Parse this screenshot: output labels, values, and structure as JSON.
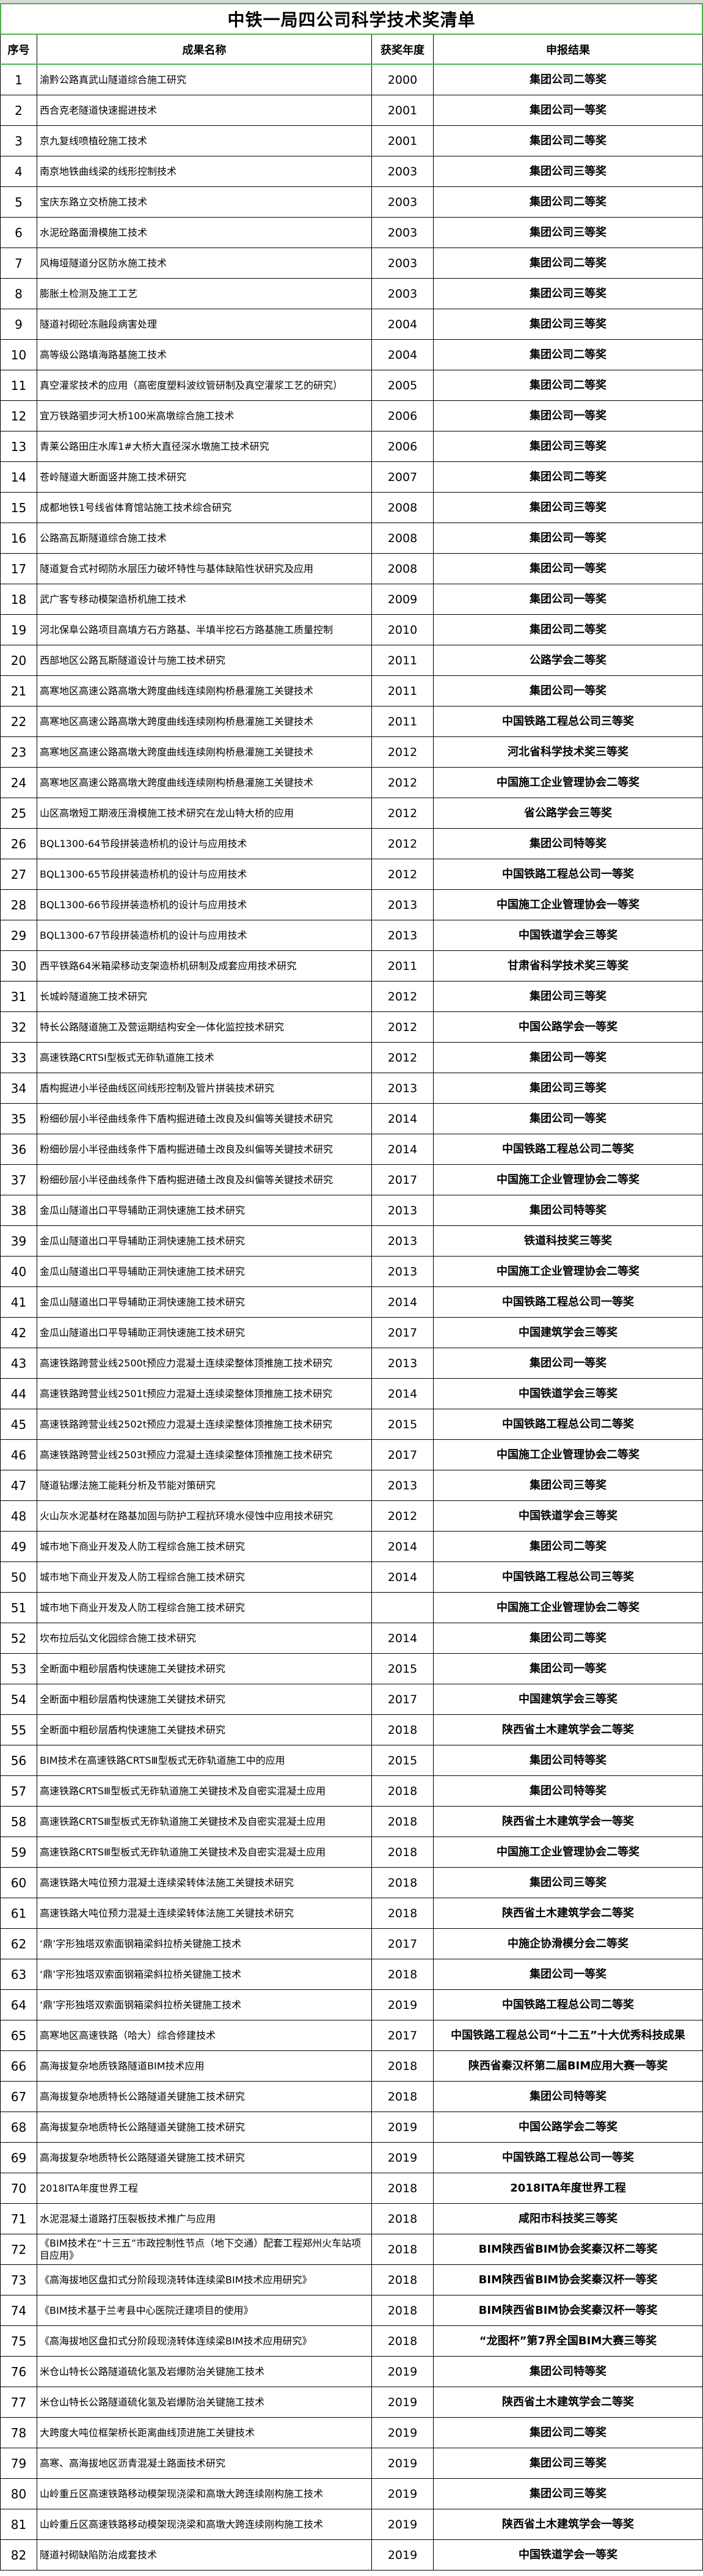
{
  "title": "中铁一局四公司科学技术奖清单",
  "columns": [
    "序号",
    "成果名称",
    "获奖年度",
    "申报结果"
  ],
  "accent_color": "#4caf50",
  "rows": [
    [
      "1",
      "渝黔公路真武山隧道综合施工研究",
      "2000",
      "集团公司二等奖"
    ],
    [
      "2",
      "西合克老隧道快速掘进技术",
      "2001",
      "集团公司一等奖"
    ],
    [
      "3",
      "京九复线喷植砼施工技术",
      "2001",
      "集团公司二等奖"
    ],
    [
      "4",
      "南京地铁曲线梁的线形控制技术",
      "2003",
      "集团公司三等奖"
    ],
    [
      "5",
      "宝庆东路立交桥施工技术",
      "2003",
      "集团公司二等奖"
    ],
    [
      "6",
      "水泥砼路面滑模施工技术",
      "2003",
      "集团公司三等奖"
    ],
    [
      "7",
      "风梅垭隧道分区防水施工技术",
      "2003",
      "集团公司二等奖"
    ],
    [
      "8",
      "膨胀土检测及施工工艺",
      "2003",
      "集团公司三等奖"
    ],
    [
      "9",
      "隧道衬砌砼冻融段病害处理",
      "2004",
      "集团公司三等奖"
    ],
    [
      "10",
      "高等级公路填海路基施工技术",
      "2004",
      "集团公司二等奖"
    ],
    [
      "11",
      "真空灌浆技术的应用（高密度塑料波纹管研制及真空灌浆工艺的研究）",
      "2005",
      "集团公司二等奖"
    ],
    [
      "12",
      "宜万铁路驷步河大桥100米高墩综合施工技术",
      "2006",
      "集团公司一等奖"
    ],
    [
      "13",
      "青莱公路田庄水库1#大桥大直径深水墩施工技术研究",
      "2006",
      "集团公司三等奖"
    ],
    [
      "14",
      "苍岭隧道大断面竖井施工技术研究",
      "2007",
      "集团公司二等奖"
    ],
    [
      "15",
      "成都地铁1号线省体育馆站施工技术综合研究",
      "2008",
      "集团公司三等奖"
    ],
    [
      "16",
      "公路高瓦斯隧道综合施工技术",
      "2008",
      "集团公司一等奖"
    ],
    [
      "17",
      "隧道复合式衬砌防水层压力破坏特性与基体缺陷性状研究及应用",
      "2008",
      "集团公司一等奖"
    ],
    [
      "18",
      "武广客专移动模架造桥机施工技术",
      "2009",
      "集团公司一等奖"
    ],
    [
      "19",
      "河北保阜公路项目高填方石方路基、半填半挖石方路基施工质量控制",
      "2010",
      "集团公司二等奖"
    ],
    [
      "20",
      "西部地区公路瓦斯隧道设计与施工技术研究",
      "2011",
      "公路学会二等奖"
    ],
    [
      "21",
      "高寒地区高速公路高墩大跨度曲线连续刚构桥悬灌施工关键技术",
      "2011",
      "集团公司一等奖"
    ],
    [
      "22",
      "高寒地区高速公路高墩大跨度曲线连续刚构桥悬灌施工关键技术",
      "2011",
      "中国铁路工程总公司三等奖"
    ],
    [
      "23",
      "高寒地区高速公路高墩大跨度曲线连续刚构桥悬灌施工关键技术",
      "2012",
      "河北省科学技术奖三等奖"
    ],
    [
      "24",
      "高寒地区高速公路高墩大跨度曲线连续刚构桥悬灌施工关键技术",
      "2012",
      "中国施工企业管理协会二等奖"
    ],
    [
      "25",
      "山区高墩短工期液压滑模施工技术研究在龙山特大桥的应用",
      "2012",
      "省公路学会三等奖"
    ],
    [
      "26",
      "BQL1300-64节段拼装造桥机的设计与应用技术",
      "2012",
      "集团公司特等奖"
    ],
    [
      "27",
      "BQL1300-65节段拼装造桥机的设计与应用技术",
      "2012",
      "中国铁路工程总公司一等奖"
    ],
    [
      "28",
      "BQL1300-66节段拼装造桥机的设计与应用技术",
      "2013",
      "中国施工企业管理协会一等奖"
    ],
    [
      "29",
      "BQL1300-67节段拼装造桥机的设计与应用技术",
      "2013",
      "中国铁道学会三等奖"
    ],
    [
      "30",
      "西平铁路64米箱梁移动支架造桥机研制及成套应用技术研究",
      "2011",
      "甘肃省科学技术奖三等奖"
    ],
    [
      "31",
      "长城岭隧道施工技术研究",
      "2012",
      "集团公司三等奖"
    ],
    [
      "32",
      "特长公路隧道施工及营运期结构安全一体化监控技术研究",
      "2012",
      "中国公路学会一等奖"
    ],
    [
      "33",
      "高速铁路CRTSⅠ型板式无砟轨道施工技术",
      "2012",
      "集团公司一等奖"
    ],
    [
      "34",
      "盾构掘进小半径曲线区间线形控制及管片拼装技术研究",
      "2013",
      "集团公司三等奖"
    ],
    [
      "35",
      "粉细砂层小半径曲线条件下盾构掘进碴土改良及纠偏等关键技术研究",
      "2014",
      "集团公司一等奖"
    ],
    [
      "36",
      "粉细砂层小半径曲线条件下盾构掘进碴土改良及纠偏等关键技术研究",
      "2014",
      "中国铁路工程总公司二等奖"
    ],
    [
      "37",
      "粉细砂层小半径曲线条件下盾构掘进碴土改良及纠偏等关键技术研究",
      "2017",
      "中国施工企业管理协会二等奖"
    ],
    [
      "38",
      "金瓜山隧道出口平导辅助正洞快速施工技术研究",
      "2013",
      "集团公司特等奖"
    ],
    [
      "39",
      "金瓜山隧道出口平导辅助正洞快速施工技术研究",
      "2013",
      "铁道科技奖三等奖"
    ],
    [
      "40",
      "金瓜山隧道出口平导辅助正洞快速施工技术研究",
      "2013",
      "中国施工企业管理协会二等奖"
    ],
    [
      "41",
      "金瓜山隧道出口平导辅助正洞快速施工技术研究",
      "2014",
      "中国铁路工程总公司一等奖"
    ],
    [
      "42",
      "金瓜山隧道出口平导辅助正洞快速施工技术研究",
      "2017",
      "中国建筑学会三等奖"
    ],
    [
      "43",
      "高速铁路跨营业线2500t预应力混凝土连续梁整体顶推施工技术研究",
      "2013",
      "集团公司一等奖"
    ],
    [
      "44",
      "高速铁路跨营业线2501t预应力混凝土连续梁整体顶推施工技术研究",
      "2014",
      "中国铁道学会三等奖"
    ],
    [
      "45",
      "高速铁路跨营业线2502t预应力混凝土连续梁整体顶推施工技术研究",
      "2015",
      "中国铁路工程总公司二等奖"
    ],
    [
      "46",
      "高速铁路跨营业线2503t预应力混凝土连续梁整体顶推施工技术研究",
      "2017",
      "中国施工企业管理协会二等奖"
    ],
    [
      "47",
      "隧道钻爆法施工能耗分析及节能对策研究",
      "2013",
      "集团公司三等奖"
    ],
    [
      "48",
      "火山灰水泥基材在路基加固与防护工程抗环境水侵蚀中应用技术研究",
      "2012",
      "中国铁道学会三等奖"
    ],
    [
      "49",
      "城市地下商业开发及人防工程综合施工技术研究",
      "2014",
      "集团公司二等奖"
    ],
    [
      "50",
      "城市地下商业开发及人防工程综合施工技术研究",
      "2014",
      "中国铁路工程总公司三等奖"
    ],
    [
      "51",
      "城市地下商业开发及人防工程综合施工技术研究",
      "",
      "中国施工企业管理协会二等奖"
    ],
    [
      "52",
      "坎布拉后弘文化园综合施工技术研究",
      "2014",
      "集团公司二等奖"
    ],
    [
      "53",
      "全断面中粗砂层盾构快速施工关键技术研究",
      "2015",
      "集团公司一等奖"
    ],
    [
      "54",
      "全断面中粗砂层盾构快速施工关键技术研究",
      "2017",
      "中国建筑学会三等奖"
    ],
    [
      "55",
      "全断面中粗砂层盾构快速施工关键技术研究",
      "2018",
      "陕西省土木建筑学会二等奖"
    ],
    [
      "56",
      "BIM技术在高速铁路CRTSⅢ型板式无砟轨道施工中的应用",
      "2015",
      "集团公司特等奖"
    ],
    [
      "57",
      "高速铁路CRTSⅢ型板式无砟轨道施工关键技术及自密实混凝土应用",
      "2018",
      "集团公司特等奖"
    ],
    [
      "58",
      "高速铁路CRTSⅢ型板式无砟轨道施工关键技术及自密实混凝土应用",
      "2018",
      "陕西省土木建筑学会一等奖"
    ],
    [
      "59",
      "高速铁路CRTSⅢ型板式无砟轨道施工关键技术及自密实混凝土应用",
      "2018",
      "中国施工企业管理协会二等奖"
    ],
    [
      "60",
      "高速铁路大吨位预力混凝土连续梁转体法施工关键技术研究",
      "2018",
      "集团公司三等奖"
    ],
    [
      "61",
      "高速铁路大吨位预力混凝土连续梁转体法施工关键技术研究",
      "2018",
      "陕西省土木建筑学会二等奖"
    ],
    [
      "62",
      "‘鼎’字形独塔双索面钢箱梁斜拉桥关键施工技术",
      "2017",
      "中施企协滑模分会二等奖"
    ],
    [
      "63",
      "‘鼎’字形独塔双索面钢箱梁斜拉桥关键施工技术",
      "2018",
      "集团公司一等奖"
    ],
    [
      "64",
      "‘鼎’字形独塔双索面钢箱梁斜拉桥关键施工技术",
      "2019",
      "中国铁路工程总公司二等奖"
    ],
    [
      "65",
      "高寒地区高速铁路（哈大）综合修建技术",
      "2017",
      "中国铁路工程总公司“十二五”十大优秀科技成果"
    ],
    [
      "66",
      "高海拔复杂地质铁路隧道BIM技术应用",
      "2018",
      "陕西省秦汉杯第二届BIM应用大赛一等奖"
    ],
    [
      "67",
      "高海拔复杂地质特长公路隧道关键施工技术研究",
      "2018",
      "集团公司特等奖"
    ],
    [
      "68",
      "高海拔复杂地质特长公路隧道关键施工技术研究",
      "2019",
      "中国公路学会二等奖"
    ],
    [
      "69",
      "高海拔复杂地质特长公路隧道关键施工技术研究",
      "2019",
      "中国铁路工程总公司一等奖"
    ],
    [
      "70",
      "2018ITA年度世界工程",
      "2018",
      "2018ITA年度世界工程"
    ],
    [
      "71",
      "水泥混凝土道路打压裂板技术推广与应用",
      "2018",
      "咸阳市科技奖三等奖"
    ],
    [
      "72",
      "《BIM技术在“十三五”市政控制性节点（地下交通）配套工程郑州火车站项目应用》",
      "2018",
      "BIM陕西省BIM协会奖秦汉杯二等奖"
    ],
    [
      "73",
      "《高海拔地区盘扣式分阶段现浇转体连续梁BIM技术应用研究》",
      "2018",
      "BIM陕西省BIM协会奖秦汉杯一等奖"
    ],
    [
      "74",
      "《BIM技术基于兰考县中心医院迁建项目的使用》",
      "2018",
      "BIM陕西省BIM协会奖秦汉杯一等奖"
    ],
    [
      "75",
      "《高海拔地区盘扣式分阶段现浇转体连续梁BIM技术应用研究》",
      "2018",
      "“龙图杯”第7界全国BIM大赛三等奖"
    ],
    [
      "76",
      "米仓山特长公路隧道硫化氢及岩爆防治关键施工技术",
      "2019",
      "集团公司特等奖"
    ],
    [
      "77",
      "米仓山特长公路隧道硫化氢及岩爆防治关键施工技术",
      "2019",
      "陕西省土木建筑学会二等奖"
    ],
    [
      "78",
      "大跨度大吨位框架桥长距离曲线顶进施工关键技术",
      "2019",
      "集团公司二等奖"
    ],
    [
      "79",
      "高寒、高海拔地区沥青混凝土路面技术研究",
      "2019",
      "集团公司三等奖"
    ],
    [
      "80",
      "山岭重丘区高速铁路移动模架现浇梁和高墩大跨连续刚构施工技术",
      "2019",
      "集团公司三等奖"
    ],
    [
      "81",
      "山岭重丘区高速铁路移动模架现浇梁和高墩大跨连续刚构施工技术",
      "2019",
      "陕西省土木建筑学会一等奖"
    ],
    [
      "82",
      "隧道衬砌缺陷防治成套技术",
      "2019",
      "中国铁道学会一等奖"
    ]
  ]
}
